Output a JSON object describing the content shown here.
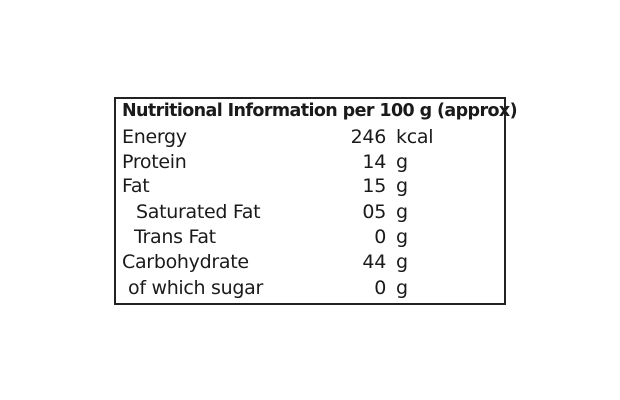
{
  "title": "Nutritional Information per 100 g (approx)",
  "rows": [
    {
      "label": "Energy",
      "value": "246",
      "unit": "kcal",
      "indent": 0
    },
    {
      "label": "Protein",
      "value": "14",
      "unit": "g",
      "indent": 0
    },
    {
      "label": "Fat",
      "value": "15",
      "unit": "g",
      "indent": 0
    },
    {
      "label": "Saturated Fat",
      "value": "05",
      "unit": "g",
      "indent": 1
    },
    {
      "label": "Trans Fat",
      "value": "0",
      "unit": "g",
      "indent": 1
    },
    {
      "label": "Carbohydrate",
      "value": "44",
      "unit": "g",
      "indent": 0
    },
    {
      "label": "of which sugar",
      "value": "0",
      "unit": "g",
      "indent": 1
    }
  ]
}
